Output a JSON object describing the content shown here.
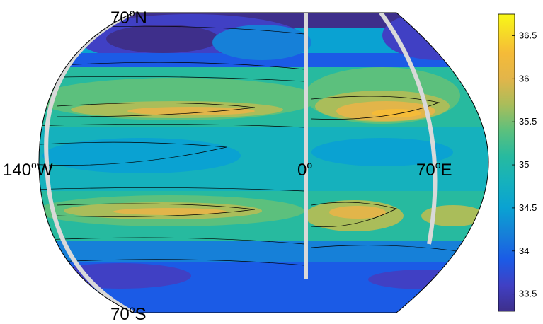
{
  "map": {
    "labels": {
      "north": "70",
      "north_suffix": "N",
      "south": "70",
      "south_suffix": "S",
      "west": "140",
      "west_suffix": "W",
      "center": "0",
      "east": "70",
      "east_suffix": "E",
      "degree": "o"
    },
    "colors": {
      "frame": "#000000",
      "land_boundary": "#d9d9d9",
      "contour": "#000000"
    }
  },
  "colorbar": {
    "ticks": [
      "33.5",
      "34",
      "34.5",
      "35",
      "35.5",
      "36",
      "36.5"
    ],
    "min": 33.3,
    "max": 36.75,
    "stops": [
      {
        "v": 33.3,
        "c": "#3e2f8b"
      },
      {
        "v": 33.6,
        "c": "#4040c4"
      },
      {
        "v": 33.9,
        "c": "#1b5be6"
      },
      {
        "v": 34.2,
        "c": "#1680d8"
      },
      {
        "v": 34.5,
        "c": "#0aa2d2"
      },
      {
        "v": 34.8,
        "c": "#15b1bd"
      },
      {
        "v": 35.1,
        "c": "#27ba9f"
      },
      {
        "v": 35.4,
        "c": "#5cc07d"
      },
      {
        "v": 35.7,
        "c": "#aabd5a"
      },
      {
        "v": 36.0,
        "c": "#e2b54a"
      },
      {
        "v": 36.3,
        "c": "#f5bb38"
      },
      {
        "v": 36.75,
        "c": "#f8f817"
      }
    ]
  }
}
